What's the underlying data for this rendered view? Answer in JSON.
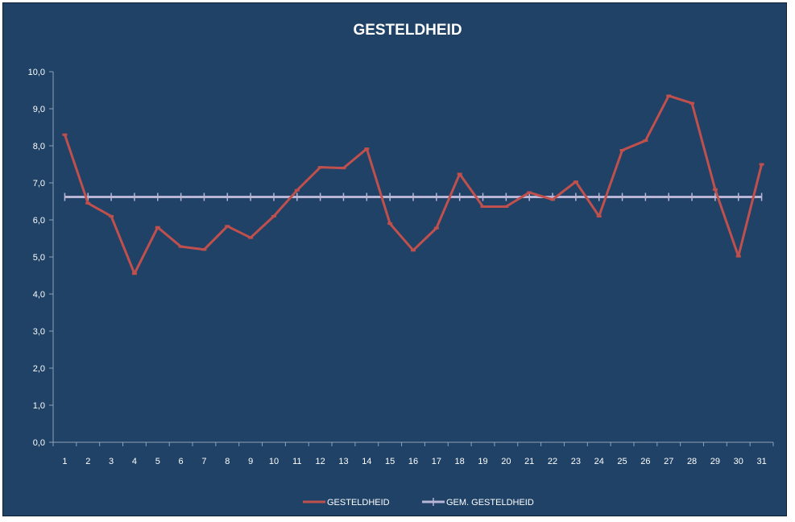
{
  "chart_data": {
    "type": "line",
    "title": "GESTELDHEID",
    "xlabel": "",
    "ylabel": "",
    "categories": [
      "1",
      "2",
      "3",
      "4",
      "5",
      "6",
      "7",
      "8",
      "9",
      "10",
      "11",
      "12",
      "13",
      "14",
      "15",
      "16",
      "17",
      "18",
      "19",
      "20",
      "21",
      "22",
      "23",
      "24",
      "25",
      "26",
      "27",
      "28",
      "29",
      "30",
      "31"
    ],
    "ylim": [
      0,
      10
    ],
    "yticks": [
      "0,0",
      "1,0",
      "2,0",
      "3,0",
      "4,0",
      "5,0",
      "6,0",
      "7,0",
      "8,0",
      "9,0",
      "10,0"
    ],
    "grid": false,
    "legend_position": "bottom",
    "series": [
      {
        "name": "GESTELDHEID",
        "color": "#c0504d",
        "values": [
          8.3,
          6.45,
          6.1,
          4.55,
          5.8,
          5.28,
          5.2,
          5.83,
          5.52,
          6.1,
          6.8,
          7.42,
          7.4,
          7.92,
          5.9,
          5.18,
          5.78,
          7.24,
          6.36,
          6.36,
          6.74,
          6.55,
          7.03,
          6.1,
          7.88,
          8.14,
          9.35,
          9.15,
          6.82,
          5.02,
          7.5
        ]
      },
      {
        "name": "GEM. GESTELDHEID",
        "color": "#b9b5d6",
        "values": [
          6.62,
          6.62,
          6.62,
          6.62,
          6.62,
          6.62,
          6.62,
          6.62,
          6.62,
          6.62,
          6.62,
          6.62,
          6.62,
          6.62,
          6.62,
          6.62,
          6.62,
          6.62,
          6.62,
          6.62,
          6.62,
          6.62,
          6.62,
          6.62,
          6.62,
          6.62,
          6.62,
          6.62,
          6.62,
          6.62,
          6.62
        ]
      }
    ],
    "colors": {
      "background": "#1f4266",
      "axis": "#8ea3bb",
      "text": "#ffffff"
    }
  }
}
